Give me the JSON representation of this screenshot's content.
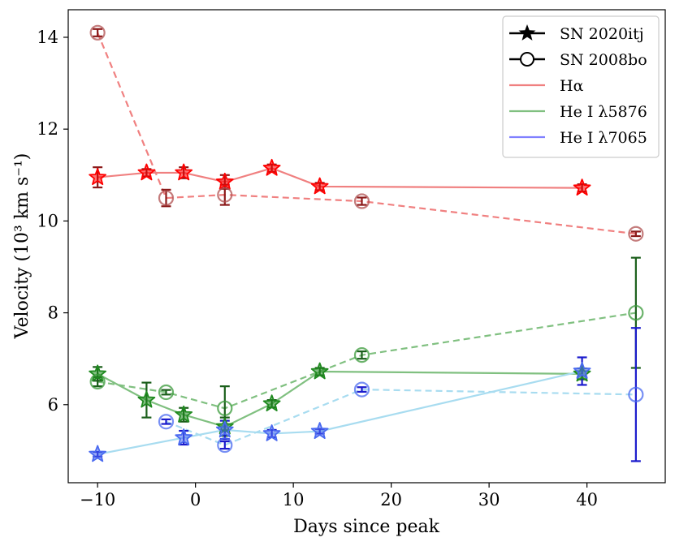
{
  "chart_data": {
    "type": "scatter",
    "title": "",
    "xlabel": "Days since peak",
    "ylabel": "Velocity (10³ km s⁻¹)",
    "xlim": [
      -13,
      48
    ],
    "ylim": [
      4.3,
      14.6
    ],
    "xticks": [
      -10,
      0,
      10,
      20,
      30,
      40
    ],
    "yticks": [
      6,
      8,
      10,
      12,
      14
    ],
    "xtick_labels": [
      "−10",
      "0",
      "10",
      "20",
      "30",
      "40"
    ],
    "ytick_labels": [
      "6",
      "8",
      "10",
      "12",
      "14"
    ],
    "legend": {
      "placement": "top-right",
      "entries": [
        {
          "label": "SN 2020itj",
          "marker": "star",
          "color": "#000000"
        },
        {
          "label": "SN 2008bo",
          "marker": "circle",
          "color": "#000000"
        },
        {
          "label": "Hα",
          "marker": "line",
          "color": "#f08080"
        },
        {
          "label": "He I λ5876",
          "marker": "line",
          "color": "#80c080"
        },
        {
          "label": "He I λ7065",
          "marker": "line",
          "color": "#8080ff"
        }
      ]
    },
    "series": [
      {
        "name": "SN 2020itj Hα",
        "object": "SN 2020itj",
        "line": "Hα",
        "marker": "star",
        "dashed": false,
        "color": "#ff0000",
        "errcolor": "#8b1a1a",
        "linecolor": "#f08080",
        "points": [
          {
            "x": -10,
            "y": 10.95,
            "err": 0.22
          },
          {
            "x": -5,
            "y": 11.05,
            "err": 0.08
          },
          {
            "x": -1.2,
            "y": 11.05,
            "err": 0.12
          },
          {
            "x": 3,
            "y": 10.85,
            "err": 0.15
          },
          {
            "x": 7.8,
            "y": 11.15,
            "err": 0.08
          },
          {
            "x": 12.7,
            "y": 10.75,
            "err": 0.08
          },
          {
            "x": 39.5,
            "y": 10.72,
            "err": 0.08
          }
        ]
      },
      {
        "name": "SN 2008bo Hα",
        "object": "SN 2008bo",
        "line": "Hα",
        "marker": "circle",
        "dashed": true,
        "color": "#b05050",
        "errcolor": "#8b1a1a",
        "linecolor": "#f08080",
        "points": [
          {
            "x": -10,
            "y": 14.1,
            "err": 0.08
          },
          {
            "x": -3,
            "y": 10.5,
            "err": 0.18
          },
          {
            "x": 3,
            "y": 10.57,
            "err": 0.22
          },
          {
            "x": 17,
            "y": 10.43,
            "err": 0.08
          },
          {
            "x": 45,
            "y": 9.72,
            "err": 0.05
          }
        ]
      },
      {
        "name": "SN 2020itj He I λ5876",
        "object": "SN 2020itj",
        "line": "He I λ5876",
        "marker": "star",
        "dashed": false,
        "color": "#1f8a1f",
        "errcolor": "#1a5e1a",
        "linecolor": "#80c080",
        "points": [
          {
            "x": -10,
            "y": 6.67,
            "err": 0.15
          },
          {
            "x": -5,
            "y": 6.1,
            "err": 0.38
          },
          {
            "x": -1.2,
            "y": 5.78,
            "err": 0.15
          },
          {
            "x": 3,
            "y": 5.52,
            "err": 0.2
          },
          {
            "x": 7.8,
            "y": 6.02,
            "err": 0.08
          },
          {
            "x": 12.7,
            "y": 6.72,
            "err": 0.08
          },
          {
            "x": 39.5,
            "y": 6.67,
            "err": 0.12
          }
        ]
      },
      {
        "name": "SN 2008bo He I λ5876",
        "object": "SN 2008bo",
        "line": "He I λ5876",
        "marker": "circle",
        "dashed": true,
        "color": "#3a9a3a",
        "errcolor": "#1a5e1a",
        "linecolor": "#80c080",
        "points": [
          {
            "x": -10,
            "y": 6.5,
            "err": 0.1
          },
          {
            "x": -3,
            "y": 6.27,
            "err": 0.05
          },
          {
            "x": 3,
            "y": 5.92,
            "err": 0.48
          },
          {
            "x": 17,
            "y": 7.08,
            "err": 0.08
          },
          {
            "x": 45,
            "y": 8.0,
            "err": 1.2
          }
        ]
      },
      {
        "name": "SN 2020itj He I λ7065",
        "object": "SN 2020itj",
        "line": "He I λ7065",
        "marker": "star",
        "dashed": false,
        "color": "#4a6af0",
        "errcolor": "#1a1acc",
        "linecolor": "#a8dcf0",
        "points": [
          {
            "x": -10,
            "y": 4.92,
            "err": 0.05
          },
          {
            "x": -1.2,
            "y": 5.28,
            "err": 0.15
          },
          {
            "x": 3,
            "y": 5.45,
            "err": 0.2
          },
          {
            "x": 7.8,
            "y": 5.37,
            "err": 0.08
          },
          {
            "x": 12.7,
            "y": 5.42,
            "err": 0.05
          },
          {
            "x": 39.5,
            "y": 6.73,
            "err": 0.3
          }
        ]
      },
      {
        "name": "SN 2008bo He I λ7065",
        "object": "SN 2008bo",
        "line": "He I λ7065",
        "marker": "circle",
        "dashed": true,
        "color": "#4a6af0",
        "errcolor": "#1a1acc",
        "linecolor": "#a8dcf0",
        "points": [
          {
            "x": -3,
            "y": 5.63,
            "err": 0.05
          },
          {
            "x": 3,
            "y": 5.12,
            "err": 0.08
          },
          {
            "x": 17,
            "y": 6.33,
            "err": 0.05
          },
          {
            "x": 45,
            "y": 6.22,
            "err": 1.45
          }
        ]
      }
    ]
  }
}
